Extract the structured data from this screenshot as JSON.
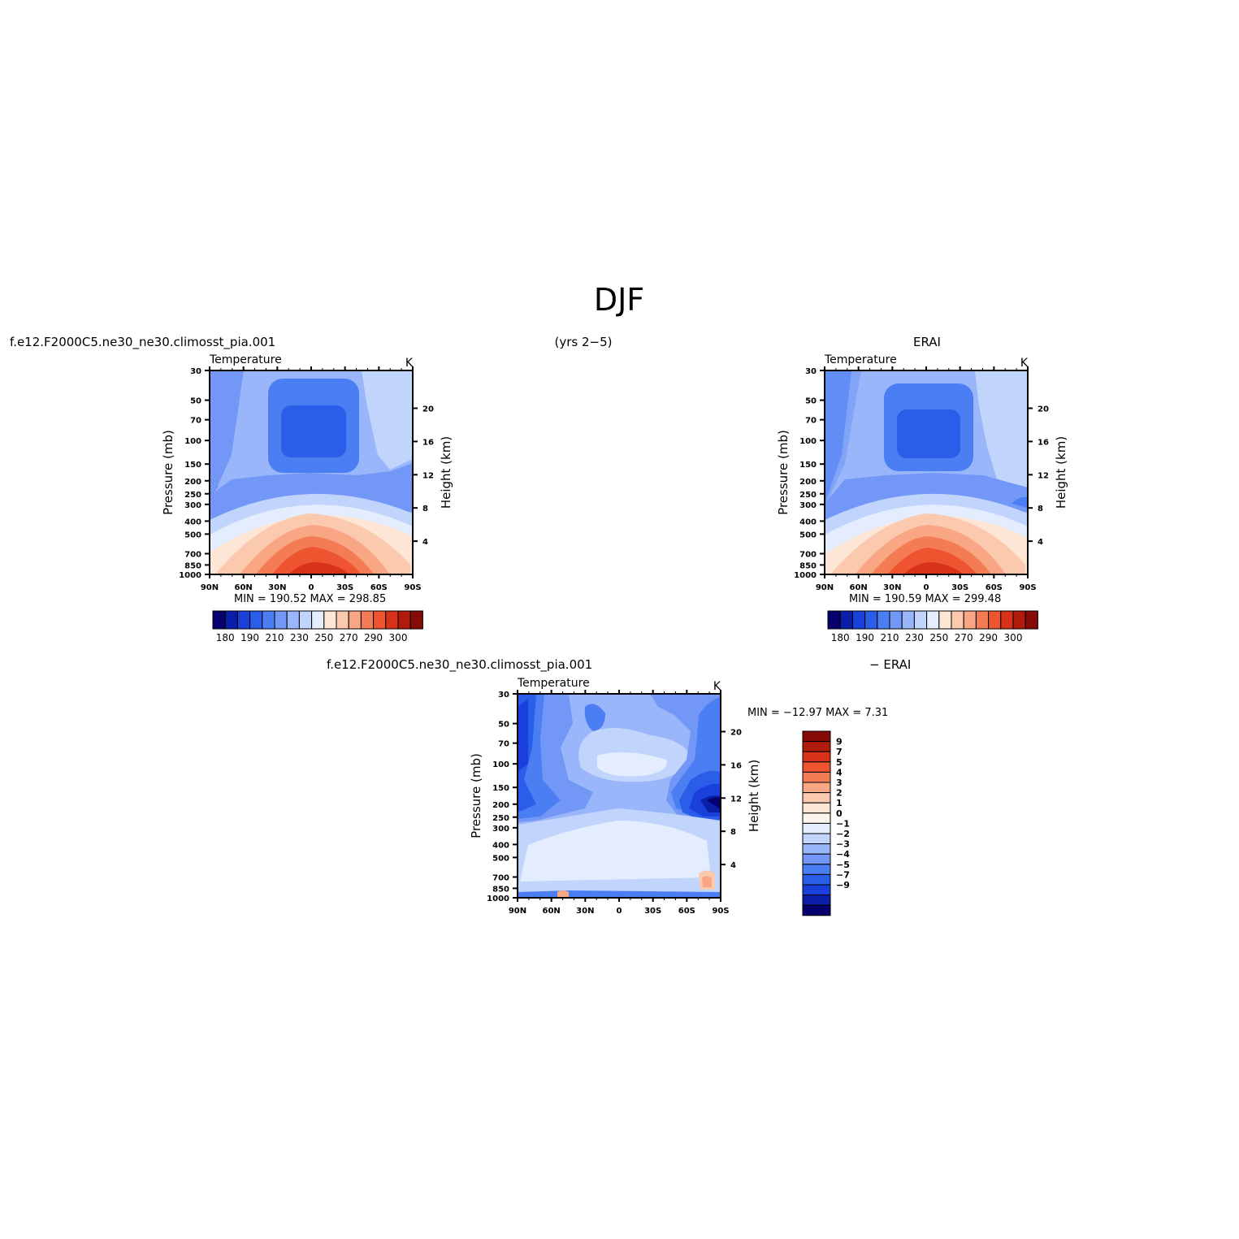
{
  "page": {
    "title": "DJF",
    "left_caption": "f.e12.F2000C5.ne30_ne30.climosst_pia.001",
    "center_caption": "(yrs 2−5)",
    "right_caption": "ERAI",
    "diff_left_caption": "f.e12.F2000C5.ne30_ne30.climosst_pia.001",
    "diff_right_caption": "− ERAI"
  },
  "colors": {
    "abs_levels": [
      "#08006e",
      "#0b1ea8",
      "#1a40dc",
      "#2a5ee8",
      "#4a7ef2",
      "#7297f6",
      "#9ab6fa",
      "#c1d4fc",
      "#e3edfd",
      "#fde6d6",
      "#fbcaae",
      "#f8a684",
      "#f47c55",
      "#ee5430",
      "#d8321a",
      "#b01b0c",
      "#860a05"
    ],
    "diff_levels": [
      "#860a05",
      "#b01b0c",
      "#d8321a",
      "#ee5430",
      "#f47c55",
      "#f8a684",
      "#fbcaae",
      "#fde6d6",
      "#fdf4ee",
      "#e3edfd",
      "#c1d4fc",
      "#9ab6fa",
      "#7297f6",
      "#4a7ef2",
      "#2a5ee8",
      "#1a40dc",
      "#0b1ea8",
      "#08006e"
    ]
  },
  "chart_data": [
    {
      "type": "heatmap",
      "panel": "model",
      "title": "Temperature",
      "units": "K",
      "ylabel": "Pressure (mb)",
      "ylabel_right": "Height (km)",
      "xticks": [
        "90N",
        "60N",
        "30N",
        "0",
        "30S",
        "60S",
        "90S"
      ],
      "yticks": [
        "30",
        "50",
        "70",
        "100",
        "150",
        "200",
        "250",
        "300",
        "400",
        "500",
        "700",
        "850",
        "1000"
      ],
      "yticks_right": [
        "20",
        "16",
        "12",
        "8",
        "4"
      ],
      "stats": {
        "min_label": "MIN =",
        "min": "190.52",
        "max_label": "MAX =",
        "max": "298.85"
      },
      "colorbar_labels": [
        "180",
        "190",
        "210",
        "230",
        "250",
        "270",
        "290",
        "300"
      ],
      "contour_min": 190.52,
      "contour_max": 298.85
    },
    {
      "type": "heatmap",
      "panel": "obs",
      "title": "Temperature",
      "units": "K",
      "ylabel": "Pressure (mb)",
      "ylabel_right": "Height (km)",
      "xticks": [
        "90N",
        "60N",
        "30N",
        "0",
        "30S",
        "60S",
        "90S"
      ],
      "yticks": [
        "30",
        "50",
        "70",
        "100",
        "150",
        "200",
        "250",
        "300",
        "400",
        "500",
        "700",
        "850",
        "1000"
      ],
      "yticks_right": [
        "20",
        "16",
        "12",
        "8",
        "4"
      ],
      "stats": {
        "min_label": "MIN =",
        "min": "190.59",
        "max_label": "MAX =",
        "max": "299.48"
      },
      "colorbar_labels": [
        "180",
        "190",
        "210",
        "230",
        "250",
        "270",
        "290",
        "300"
      ],
      "contour_min": 190.59,
      "contour_max": 299.48
    },
    {
      "type": "heatmap",
      "panel": "difference",
      "title": "Temperature",
      "units": "K",
      "ylabel": "Pressure (mb)",
      "ylabel_right": "Height (km)",
      "xticks": [
        "90N",
        "60N",
        "30N",
        "0",
        "30S",
        "60S",
        "90S"
      ],
      "yticks": [
        "30",
        "50",
        "70",
        "100",
        "150",
        "200",
        "250",
        "300",
        "400",
        "500",
        "700",
        "850",
        "1000"
      ],
      "yticks_right": [
        "20",
        "16",
        "12",
        "8",
        "4"
      ],
      "stats": {
        "min_label": "MIN = −12.97",
        "max_label": "MAX =",
        "max": "7.31"
      },
      "colorbar_labels": [
        "9",
        "7",
        "5",
        "4",
        "3",
        "2",
        "1",
        "0",
        "−1",
        "−2",
        "−3",
        "−4",
        "−5",
        "−7",
        "−9"
      ],
      "contour_min": -12.97,
      "contour_max": 7.31
    }
  ]
}
